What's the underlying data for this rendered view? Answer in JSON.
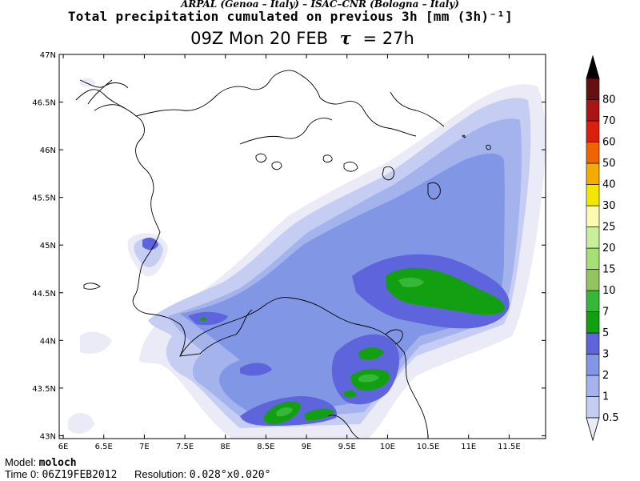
{
  "header": {
    "credits": "ARPAL (Genoa – Italy)  –  ISAC–CNR (Bologna – Italy)",
    "title": "Total precipitation cumulated on previous 3h [mm (3h)⁻¹]",
    "time_label": "09Z Mon 20 FEB",
    "tau_symbol": "τ",
    "tau_value": "= 27h"
  },
  "map": {
    "lat_ticks": [
      "47N",
      "46.5N",
      "46N",
      "45.5N",
      "45N",
      "44.5N",
      "44N",
      "43.5N",
      "43N"
    ],
    "lon_ticks": [
      "6E",
      "6.5E",
      "7E",
      "7.5E",
      "8E",
      "8.5E",
      "9E",
      "9.5E",
      "10E",
      "10.5E",
      "11E",
      "11.5E"
    ],
    "lat_values": [
      47,
      46.5,
      46,
      45.5,
      45,
      44.5,
      44,
      43.5,
      43
    ],
    "lon_values": [
      6,
      6.5,
      7,
      7.5,
      8,
      8.5,
      9,
      9.5,
      10,
      10.5,
      11,
      11.5
    ],
    "lat_range": [
      42.97,
      47.0
    ],
    "lon_range": [
      5.95,
      11.95
    ]
  },
  "colorbar": {
    "labels": [
      "0.5",
      "1",
      "2",
      "3",
      "5",
      "7",
      "10",
      "15",
      "20",
      "25",
      "30",
      "40",
      "50",
      "60",
      "70",
      "80"
    ],
    "colors": [
      "#ebebf8",
      "#c6cdf2",
      "#a5b3ec",
      "#8296e6",
      "#5e64dc",
      "#12a012",
      "#37b737",
      "#92c55d",
      "#a5e075",
      "#c8f09b",
      "#fafab0",
      "#f5e600",
      "#f5aa00",
      "#f06400",
      "#dc1e0f",
      "#aa1414",
      "#641010"
    ],
    "top_color": "#000000"
  },
  "footer": {
    "model_label": "Model:",
    "model_value": "moloch",
    "time0_label": "Time 0:",
    "time0_value": "06Z19FEB2012",
    "resolution_label": "Resolution:",
    "resolution_value": "0.028°x0.020°"
  }
}
